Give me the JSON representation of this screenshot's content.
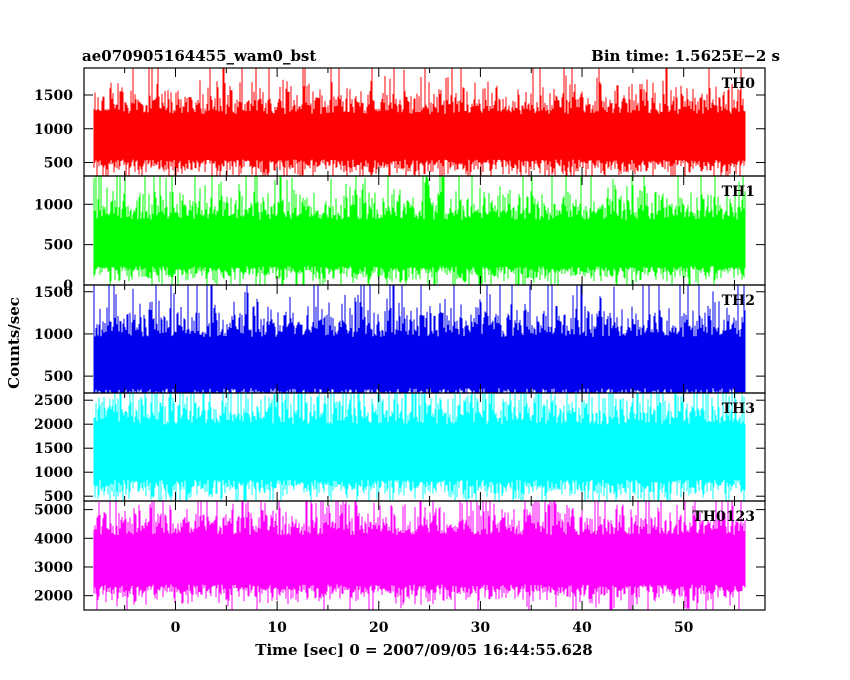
{
  "chart_data": {
    "type": "line",
    "title_left": "ae070905164455_wam0_bst",
    "title_right": "Bin time: 1.5625E−2 s",
    "xlabel": "Time [sec] 0 = 2007/09/05 16:44:55.628",
    "ylabel": "Counts/sec",
    "xlim": [
      -9,
      58
    ],
    "x_ticks": [
      0,
      10,
      20,
      30,
      40,
      50
    ],
    "x_ticks_text": [
      "0",
      "10",
      "20",
      "30",
      "40",
      "50"
    ],
    "data_range": [
      -8,
      56
    ],
    "panels": [
      {
        "name": "TH0",
        "color": "#ff0000",
        "ylim": [
          300,
          1900
        ],
        "y_ticks": [
          500,
          1000,
          1500
        ],
        "y_ticks_text": [
          "500",
          "1000",
          "1500"
        ],
        "mean": 880,
        "spread": 210,
        "spike_max": 1900,
        "spike_min": 300
      },
      {
        "name": "TH1",
        "color": "#00ff00",
        "ylim": [
          0,
          1350
        ],
        "y_ticks": [
          0,
          500,
          1000
        ],
        "y_ticks_text": [
          "0",
          "500",
          "1000"
        ],
        "mean": 520,
        "spread": 180,
        "spike_max": 1350,
        "spike_min": 0
      },
      {
        "name": "TH2",
        "color": "#0000ee",
        "ylim": [
          300,
          1580
        ],
        "y_ticks": [
          500,
          1000,
          1500
        ],
        "y_ticks_text": [
          "500",
          "1000",
          "1500"
        ],
        "mean": 660,
        "spread": 190,
        "spike_max": 1580,
        "spike_min": 300
      },
      {
        "name": "TH3",
        "color": "#00ffff",
        "ylim": [
          400,
          2650
        ],
        "y_ticks": [
          500,
          1000,
          1500,
          2000,
          2500
        ],
        "y_ticks_text": [
          "500",
          "1000",
          "1500",
          "2000",
          "2500"
        ],
        "mean": 1420,
        "spread": 360,
        "spike_max": 2650,
        "spike_min": 400
      },
      {
        "name": "TH0123",
        "color": "#ff00ff",
        "ylim": [
          1500,
          5300
        ],
        "y_ticks": [
          2000,
          3000,
          4000,
          5000
        ],
        "y_ticks_text": [
          "2000",
          "3000",
          "4000",
          "5000"
        ],
        "mean": 3250,
        "spread": 540,
        "spike_max": 5300,
        "spike_min": 1500
      }
    ]
  }
}
